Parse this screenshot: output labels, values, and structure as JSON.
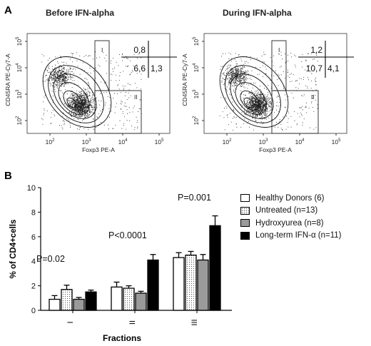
{
  "panel_a": {
    "letter": "A",
    "plots": [
      {
        "title": "Before IFN-alpha",
        "ylabel": "CD45RA PE-Cy7-A",
        "xlabel": "Foxp3 PE-A",
        "quadrants": {
          "top": "0,8",
          "bottom_left": "6,6",
          "bottom_right": "1,3"
        },
        "gate_labels": [
          "I",
          "II"
        ]
      },
      {
        "title": "During IFN-alpha",
        "ylabel": "CD45RA PE-Cy7-A",
        "xlabel": "Foxp3 PE-A",
        "quadrants": {
          "top": "1,2",
          "bottom_left": "10,7",
          "bottom_right": "4,1"
        },
        "gate_labels": [
          "I",
          "II"
        ]
      }
    ],
    "x_ticks": [
      "10",
      "10",
      "10",
      "10"
    ],
    "x_tick_exp": [
      "2",
      "3",
      "4",
      "5"
    ],
    "y_ticks": [
      "10",
      "10",
      "10",
      "10"
    ],
    "y_tick_exp": [
      "2",
      "3",
      "4",
      "5"
    ]
  },
  "panel_b": {
    "letter": "B"
  },
  "chart_data": {
    "type": "bar",
    "categories": [
      "I",
      "II",
      "III"
    ],
    "xlabel": "Fractions",
    "ylabel": "% of CD4+cells",
    "ylim": [
      0,
      10
    ],
    "yticks": [
      "0",
      "2",
      "4",
      "6",
      "8",
      "10"
    ],
    "series": [
      {
        "name": "Healthy Donors (6)",
        "values": [
          0.9,
          1.9,
          4.3
        ],
        "errors": [
          0.3,
          0.4,
          0.4
        ],
        "fill": "#ffffff",
        "pattern": "none"
      },
      {
        "name": "Untreated (n=13)",
        "values": [
          1.7,
          1.8,
          4.5
        ],
        "errors": [
          0.35,
          0.2,
          0.3
        ],
        "fill": "#ffffff",
        "pattern": "dots"
      },
      {
        "name": "Hydroxyurea (n=8)",
        "values": [
          0.9,
          1.4,
          4.1
        ],
        "errors": [
          0.15,
          0.15,
          0.45
        ],
        "fill": "#9a9a9a",
        "pattern": "none"
      },
      {
        "name": "Long-term IFN-α (n=11)",
        "values": [
          1.5,
          4.1,
          6.9
        ],
        "errors": [
          0.15,
          0.45,
          0.8
        ],
        "fill": "#000000",
        "pattern": "none"
      }
    ],
    "annotations": [
      "P=0.02",
      "P<0.0001",
      "P=0.001"
    ]
  }
}
